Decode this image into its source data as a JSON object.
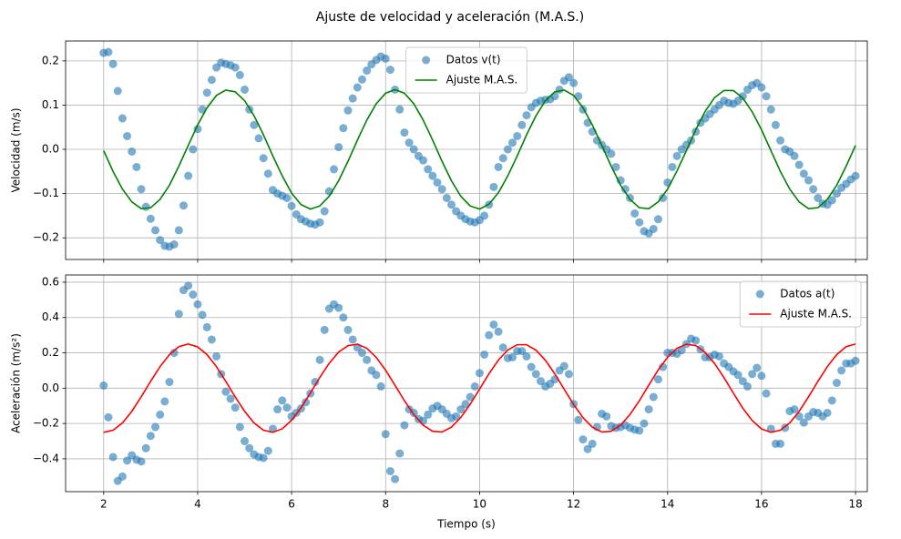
{
  "suptitle": "Ajuste de velocidad y aceleración (M.A.S.)",
  "chart_data": [
    {
      "type": "combo",
      "ylabel": "Velocidad (m/s)",
      "legend": "upper center",
      "grid": true,
      "xlim": [
        1.19,
        18.25
      ],
      "xticks": [
        2,
        4,
        6,
        8,
        10,
        12,
        14,
        16,
        18
      ],
      "ylim": [
        -0.249,
        0.245
      ],
      "yticks": [
        {
          "value": -0.2,
          "label": "−0.2"
        },
        {
          "value": -0.1,
          "label": "−0.1"
        },
        {
          "value": 0,
          "label": "0.0"
        },
        0.1,
        0.2
      ],
      "x": [
        2,
        2.1,
        2.2,
        2.3,
        2.4,
        2.5,
        2.6,
        2.7,
        2.8,
        2.9,
        3,
        3.1,
        3.2,
        3.3,
        3.4,
        3.5,
        3.6,
        3.7,
        3.8,
        3.9,
        4,
        4.1,
        4.2,
        4.3,
        4.4,
        4.5,
        4.6,
        4.7,
        4.8,
        4.9,
        5,
        5.1,
        5.2,
        5.3,
        5.4,
        5.5,
        5.6,
        5.7,
        5.8,
        5.9,
        6,
        6.1,
        6.2,
        6.3,
        6.4,
        6.5,
        6.6,
        6.7,
        6.8,
        6.9,
        7,
        7.1,
        7.2,
        7.3,
        7.4,
        7.5,
        7.6,
        7.7,
        7.8,
        7.9,
        8,
        8.1,
        8.2,
        8.3,
        8.4,
        8.5,
        8.6,
        8.7,
        8.8,
        8.9,
        9,
        9.1,
        9.2,
        9.3,
        9.4,
        9.5,
        9.6,
        9.7,
        9.8,
        9.9,
        10,
        10.1,
        10.2,
        10.3,
        10.4,
        10.5,
        10.6,
        10.7,
        10.8,
        10.9,
        11,
        11.1,
        11.2,
        11.3,
        11.4,
        11.5,
        11.6,
        11.7,
        11.8,
        11.9,
        12,
        12.1,
        12.2,
        12.3,
        12.4,
        12.5,
        12.6,
        12.7,
        12.8,
        12.9,
        13,
        13.1,
        13.2,
        13.3,
        13.4,
        13.5,
        13.6,
        13.7,
        13.8,
        13.9,
        14,
        14.1,
        14.2,
        14.3,
        14.4,
        14.5,
        14.6,
        14.7,
        14.8,
        14.9,
        15,
        15.1,
        15.2,
        15.3,
        15.4,
        15.5,
        15.6,
        15.7,
        15.8,
        15.9,
        16,
        16.1,
        16.2,
        16.3,
        16.4,
        16.5,
        16.6,
        16.7,
        16.8,
        16.9,
        17,
        17.1,
        17.2,
        17.3,
        17.4,
        17.5,
        17.6,
        17.7,
        17.8,
        17.9,
        18
      ],
      "series": [
        {
          "name": "Datos v(t)",
          "type": "scatter",
          "color": "#1f77b4",
          "values": [
            0.218,
            0.22,
            0.193,
            0.132,
            0.07,
            0.03,
            -0.005,
            -0.04,
            -0.09,
            -0.13,
            -0.157,
            -0.183,
            -0.205,
            -0.218,
            -0.22,
            -0.215,
            -0.183,
            -0.127,
            -0.06,
            0.0,
            0.046,
            0.09,
            0.128,
            0.157,
            0.185,
            0.196,
            0.193,
            0.19,
            0.185,
            0.168,
            0.135,
            0.09,
            0.055,
            0.025,
            -0.02,
            -0.055,
            -0.092,
            -0.1,
            -0.105,
            -0.11,
            -0.128,
            -0.147,
            -0.158,
            -0.163,
            -0.168,
            -0.17,
            -0.165,
            -0.14,
            -0.095,
            -0.045,
            0.005,
            0.048,
            0.088,
            0.115,
            0.14,
            0.158,
            0.178,
            0.192,
            0.202,
            0.21,
            0.205,
            0.18,
            0.135,
            0.09,
            0.038,
            0.015,
            0.0,
            -0.015,
            -0.025,
            -0.045,
            -0.06,
            -0.075,
            -0.09,
            -0.11,
            -0.125,
            -0.14,
            -0.15,
            -0.158,
            -0.163,
            -0.165,
            -0.16,
            -0.15,
            -0.125,
            -0.085,
            -0.04,
            -0.02,
            0.0,
            0.015,
            0.03,
            0.055,
            0.077,
            0.095,
            0.105,
            0.11,
            0.112,
            0.113,
            0.12,
            0.135,
            0.155,
            0.163,
            0.15,
            0.12,
            0.09,
            0.06,
            0.04,
            0.02,
            0.01,
            0.0,
            -0.01,
            -0.04,
            -0.07,
            -0.09,
            -0.11,
            -0.145,
            -0.165,
            -0.185,
            -0.19,
            -0.18,
            -0.158,
            -0.11,
            -0.075,
            -0.04,
            -0.015,
            0.0,
            0.01,
            0.02,
            0.04,
            0.06,
            0.07,
            0.08,
            0.09,
            0.1,
            0.11,
            0.105,
            0.103,
            0.11,
            0.12,
            0.135,
            0.145,
            0.15,
            0.14,
            0.12,
            0.09,
            0.055,
            0.02,
            0.0,
            -0.005,
            -0.015,
            -0.035,
            -0.055,
            -0.07,
            -0.09,
            -0.11,
            -0.123,
            -0.125,
            -0.115,
            -0.1,
            -0.087,
            -0.078,
            -0.068,
            -0.06
          ]
        },
        {
          "name": "Ajuste M.A.S.",
          "type": "line",
          "color": "#008000",
          "x": [
            2,
            2.2,
            2.4,
            2.6,
            2.8,
            3,
            3.2,
            3.4,
            3.6,
            3.8,
            4,
            4.2,
            4.4,
            4.6,
            4.8,
            5,
            5.2,
            5.4,
            5.6,
            5.8,
            6,
            6.2,
            6.4,
            6.6,
            6.8,
            7,
            7.2,
            7.4,
            7.6,
            7.8,
            8,
            8.2,
            8.4,
            8.6,
            8.8,
            9,
            9.2,
            9.4,
            9.6,
            9.8,
            10,
            10.2,
            10.4,
            10.6,
            10.8,
            11,
            11.2,
            11.4,
            11.6,
            11.8,
            12,
            12.2,
            12.4,
            12.6,
            12.8,
            13,
            13.2,
            13.4,
            13.6,
            13.8,
            14,
            14.2,
            14.4,
            14.6,
            14.8,
            15,
            15.2,
            15.4,
            15.6,
            15.8,
            16,
            16.2,
            16.4,
            16.6,
            16.8,
            17,
            17.2,
            17.4,
            17.6,
            17.8,
            18
          ],
          "values": [
            -0.003,
            -0.05,
            -0.09,
            -0.119,
            -0.134,
            -0.132,
            -0.113,
            -0.081,
            -0.038,
            0.009,
            0.055,
            0.094,
            0.122,
            0.134,
            0.13,
            0.11,
            0.076,
            0.033,
            -0.015,
            -0.06,
            -0.099,
            -0.125,
            -0.135,
            -0.128,
            -0.106,
            -0.071,
            -0.027,
            0.021,
            0.066,
            0.103,
            0.127,
            0.135,
            0.127,
            0.103,
            0.066,
            0.021,
            -0.027,
            -0.071,
            -0.106,
            -0.128,
            -0.135,
            -0.124,
            -0.098,
            -0.06,
            -0.015,
            0.033,
            0.076,
            0.11,
            0.13,
            0.134,
            0.122,
            0.094,
            0.055,
            0.009,
            -0.038,
            -0.081,
            -0.113,
            -0.132,
            -0.134,
            -0.119,
            -0.09,
            -0.049,
            -0.003,
            0.044,
            0.086,
            0.117,
            0.133,
            0.133,
            0.116,
            0.085,
            0.044,
            -0.003,
            -0.05,
            -0.09,
            -0.119,
            -0.134,
            -0.132,
            -0.113,
            -0.081,
            -0.038,
            0.009
          ]
        }
      ]
    },
    {
      "type": "combo",
      "ylabel": "Aceleración (m/s²)",
      "xlabel": "Tiempo (s)",
      "legend": "upper right",
      "grid": true,
      "xlim": [
        1.19,
        18.25
      ],
      "xticks": [
        2,
        4,
        6,
        8,
        10,
        12,
        14,
        16,
        18
      ],
      "ylim": [
        -0.586,
        0.641
      ],
      "yticks": [
        {
          "value": -0.4,
          "label": "−0.4"
        },
        {
          "value": -0.2,
          "label": "−0.2"
        },
        {
          "value": 0,
          "label": "0.0"
        },
        0.2,
        0.4,
        0.6
      ],
      "x": [
        2,
        2.1,
        2.2,
        2.3,
        2.4,
        2.5,
        2.6,
        2.7,
        2.8,
        2.9,
        3,
        3.1,
        3.2,
        3.3,
        3.4,
        3.5,
        3.6,
        3.7,
        3.8,
        3.9,
        4,
        4.1,
        4.2,
        4.3,
        4.4,
        4.5,
        4.6,
        4.7,
        4.8,
        4.9,
        5,
        5.1,
        5.2,
        5.3,
        5.4,
        5.5,
        5.6,
        5.7,
        5.8,
        5.9,
        6,
        6.1,
        6.2,
        6.3,
        6.4,
        6.5,
        6.6,
        6.7,
        6.8,
        6.9,
        7,
        7.1,
        7.2,
        7.3,
        7.4,
        7.5,
        7.6,
        7.7,
        7.8,
        7.9,
        8,
        8.1,
        8.2,
        8.3,
        8.4,
        8.5,
        8.6,
        8.7,
        8.8,
        8.9,
        9,
        9.1,
        9.2,
        9.3,
        9.4,
        9.5,
        9.6,
        9.7,
        9.8,
        9.9,
        10,
        10.1,
        10.2,
        10.3,
        10.4,
        10.5,
        10.6,
        10.7,
        10.8,
        10.9,
        11,
        11.1,
        11.2,
        11.3,
        11.4,
        11.5,
        11.6,
        11.7,
        11.8,
        11.9,
        12,
        12.1,
        12.2,
        12.3,
        12.4,
        12.5,
        12.6,
        12.7,
        12.8,
        12.9,
        13,
        13.1,
        13.2,
        13.3,
        13.4,
        13.5,
        13.6,
        13.7,
        13.8,
        13.9,
        14,
        14.1,
        14.2,
        14.3,
        14.4,
        14.5,
        14.6,
        14.7,
        14.8,
        14.9,
        15,
        15.1,
        15.2,
        15.3,
        15.4,
        15.5,
        15.6,
        15.7,
        15.8,
        15.9,
        16,
        16.1,
        16.2,
        16.3,
        16.4,
        16.5,
        16.6,
        16.7,
        16.8,
        16.9,
        17,
        17.1,
        17.2,
        17.3,
        17.4,
        17.5,
        17.6,
        17.7,
        17.8,
        17.9,
        18
      ],
      "series": [
        {
          "name": "Datos a(t)",
          "type": "scatter",
          "color": "#1f77b4",
          "values": [
            0.015,
            -0.165,
            -0.39,
            -0.525,
            -0.5,
            -0.41,
            -0.38,
            -0.405,
            -0.415,
            -0.34,
            -0.27,
            -0.22,
            -0.15,
            -0.075,
            0.035,
            0.2,
            0.42,
            0.555,
            0.58,
            0.53,
            0.475,
            0.415,
            0.345,
            0.275,
            0.18,
            0.08,
            -0.02,
            -0.06,
            -0.11,
            -0.22,
            -0.3,
            -0.34,
            -0.375,
            -0.39,
            -0.395,
            -0.355,
            -0.23,
            -0.12,
            -0.07,
            -0.11,
            -0.16,
            -0.14,
            -0.115,
            -0.08,
            -0.03,
            0.035,
            0.16,
            0.33,
            0.45,
            0.475,
            0.455,
            0.4,
            0.33,
            0.275,
            0.23,
            0.2,
            0.16,
            0.1,
            0.075,
            0.01,
            -0.26,
            -0.47,
            -0.515,
            -0.37,
            -0.21,
            -0.12,
            -0.14,
            -0.175,
            -0.185,
            -0.15,
            -0.115,
            -0.1,
            -0.12,
            -0.145,
            -0.17,
            -0.16,
            -0.12,
            -0.09,
            -0.05,
            0.01,
            0.085,
            0.19,
            0.3,
            0.36,
            0.32,
            0.23,
            0.17,
            0.175,
            0.21,
            0.21,
            0.18,
            0.12,
            0.08,
            0.04,
            0.01,
            0.025,
            0.05,
            0.1,
            0.125,
            0.08,
            -0.09,
            -0.18,
            -0.29,
            -0.345,
            -0.315,
            -0.22,
            -0.145,
            -0.16,
            -0.215,
            -0.225,
            -0.22,
            -0.21,
            -0.225,
            -0.235,
            -0.24,
            -0.2,
            -0.12,
            -0.05,
            0.05,
            0.12,
            0.2,
            0.2,
            0.195,
            0.215,
            0.25,
            0.28,
            0.27,
            0.22,
            0.175,
            0.175,
            0.19,
            0.18,
            0.14,
            0.12,
            0.095,
            0.075,
            0.04,
            0.01,
            0.08,
            0.115,
            0.07,
            -0.03,
            -0.23,
            -0.315,
            -0.315,
            -0.225,
            -0.13,
            -0.12,
            -0.16,
            -0.195,
            -0.16,
            -0.135,
            -0.14,
            -0.16,
            -0.14,
            -0.07,
            0.03,
            0.1,
            0.14,
            0.14,
            0.155
          ]
        },
        {
          "name": "Ajuste M.A.S.",
          "type": "line",
          "color": "#ff0000",
          "x": [
            2,
            2.2,
            2.4,
            2.6,
            2.8,
            3,
            3.2,
            3.4,
            3.6,
            3.8,
            4,
            4.2,
            4.4,
            4.6,
            4.8,
            5,
            5.2,
            5.4,
            5.6,
            5.8,
            6,
            6.2,
            6.4,
            6.6,
            6.8,
            7,
            7.2,
            7.4,
            7.6,
            7.8,
            8,
            8.2,
            8.4,
            8.6,
            8.8,
            9,
            9.2,
            9.4,
            9.6,
            9.8,
            10,
            10.2,
            10.4,
            10.6,
            10.8,
            11,
            11.2,
            11.4,
            11.6,
            11.8,
            12,
            12.2,
            12.4,
            12.6,
            12.8,
            13,
            13.2,
            13.4,
            13.6,
            13.8,
            14,
            14.2,
            14.4,
            14.6,
            14.8,
            15,
            15.2,
            15.4,
            15.6,
            15.8,
            16,
            16.2,
            16.4,
            16.6,
            16.8,
            17,
            17.2,
            17.4,
            17.6,
            17.8,
            18
          ],
          "values": [
            -0.25,
            -0.238,
            -0.197,
            -0.131,
            -0.049,
            0.039,
            0.122,
            0.19,
            0.235,
            0.25,
            0.234,
            0.19,
            0.122,
            0.038,
            -0.05,
            -0.131,
            -0.197,
            -0.238,
            -0.25,
            -0.23,
            -0.182,
            -0.111,
            -0.027,
            0.061,
            0.141,
            0.204,
            0.241,
            0.249,
            0.226,
            0.174,
            0.102,
            0.016,
            -0.071,
            -0.15,
            -0.21,
            -0.244,
            -0.248,
            -0.221,
            -0.166,
            -0.091,
            -0.005,
            0.082,
            0.159,
            0.216,
            0.246,
            0.246,
            0.215,
            0.158,
            0.081,
            -0.006,
            -0.092,
            -0.167,
            -0.221,
            -0.248,
            -0.244,
            -0.209,
            -0.149,
            -0.071,
            0.017,
            0.103,
            0.175,
            0.226,
            0.249,
            0.241,
            0.203,
            0.14,
            0.06,
            -0.028,
            -0.113,
            -0.183,
            -0.231,
            -0.25,
            -0.238,
            -0.197,
            -0.131,
            -0.049,
            0.039,
            0.122,
            0.19,
            0.235,
            0.25
          ]
        }
      ]
    }
  ]
}
